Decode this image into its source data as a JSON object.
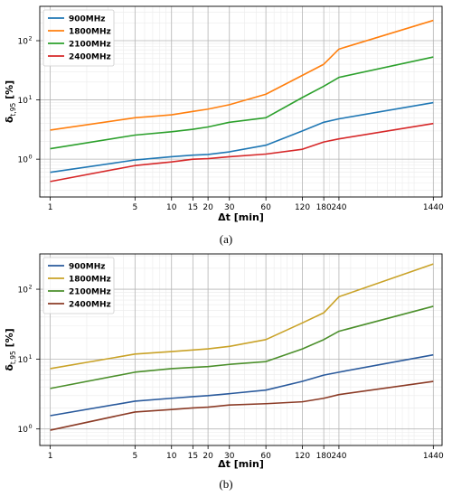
{
  "chart_data": [
    {
      "type": "line",
      "panel_label": "(a)",
      "xscale": "log",
      "yscale": "log",
      "xlabel": "Δt [min]",
      "ylabel": "δt,95 [%]",
      "ylabel_main": "δ",
      "ylabel_sub": "t,95",
      "ylabel_unit": "[%]",
      "x": [
        1,
        5,
        10,
        15,
        20,
        30,
        60,
        120,
        180,
        240,
        1440
      ],
      "xtick_labels": [
        "1",
        "5",
        "10",
        "15",
        "20",
        "30",
        "60",
        "120",
        "180",
        "240",
        "1440"
      ],
      "ytick_labels": [
        {
          "base": "10",
          "exp": "0",
          "value": 1
        },
        {
          "base": "10",
          "exp": "1",
          "value": 10
        },
        {
          "base": "10",
          "exp": "2",
          "value": 100
        }
      ],
      "xlim": [
        0.82,
        1700
      ],
      "ylim": [
        0.23,
        380
      ],
      "grid": true,
      "legend": "top-left",
      "series": [
        {
          "name": "900MHz",
          "color": "#1f77b4",
          "values": [
            0.6,
            0.97,
            1.1,
            1.17,
            1.2,
            1.33,
            1.72,
            3.0,
            4.2,
            4.8,
            9.0
          ]
        },
        {
          "name": "1800MHz",
          "color": "#ff7f0e",
          "values": [
            3.1,
            5.0,
            5.6,
            6.4,
            7.0,
            8.3,
            12.5,
            26,
            40,
            72,
            220
          ]
        },
        {
          "name": "2100MHz",
          "color": "#2ca02c",
          "values": [
            1.5,
            2.55,
            2.9,
            3.2,
            3.5,
            4.2,
            5.0,
            11,
            17,
            24,
            53
          ]
        },
        {
          "name": "2400MHz",
          "color": "#d62728",
          "values": [
            0.42,
            0.78,
            0.9,
            1.0,
            1.02,
            1.1,
            1.22,
            1.47,
            1.95,
            2.2,
            4.0
          ]
        }
      ]
    },
    {
      "type": "line",
      "panel_label": "(b)",
      "xscale": "log",
      "yscale": "log",
      "xlabel": "Δt [min]",
      "ylabel": "δt,95 [%]",
      "ylabel_main": "δ",
      "ylabel_sub": "t,95",
      "ylabel_unit": "[%]",
      "x": [
        1,
        5,
        10,
        15,
        20,
        30,
        60,
        120,
        180,
        240,
        1440
      ],
      "xtick_labels": [
        "1",
        "5",
        "10",
        "15",
        "20",
        "30",
        "60",
        "120",
        "180",
        "240",
        "1440"
      ],
      "ytick_labels": [
        {
          "base": "10",
          "exp": "0",
          "value": 1
        },
        {
          "base": "10",
          "exp": "1",
          "value": 10
        },
        {
          "base": "10",
          "exp": "2",
          "value": 100
        }
      ],
      "xlim": [
        0.82,
        1700
      ],
      "ylim": [
        0.58,
        320
      ],
      "grid": true,
      "legend": "top-left",
      "series": [
        {
          "name": "900MHz",
          "color": "#2a5a9c",
          "values": [
            1.55,
            2.5,
            2.75,
            2.9,
            3.0,
            3.2,
            3.6,
            4.8,
            5.9,
            6.5,
            11.5
          ]
        },
        {
          "name": "1800MHz",
          "color": "#c9a227",
          "values": [
            7.3,
            11.8,
            12.8,
            13.5,
            14.0,
            15.2,
            19.0,
            33,
            46,
            78,
            230
          ]
        },
        {
          "name": "2100MHz",
          "color": "#4b8f2b",
          "values": [
            3.8,
            6.5,
            7.3,
            7.6,
            7.8,
            8.4,
            9.2,
            14,
            19,
            25,
            57
          ]
        },
        {
          "name": "2400MHz",
          "color": "#8b3b26",
          "values": [
            0.96,
            1.75,
            1.9,
            2.0,
            2.05,
            2.2,
            2.3,
            2.45,
            2.75,
            3.1,
            4.8
          ]
        }
      ]
    }
  ]
}
